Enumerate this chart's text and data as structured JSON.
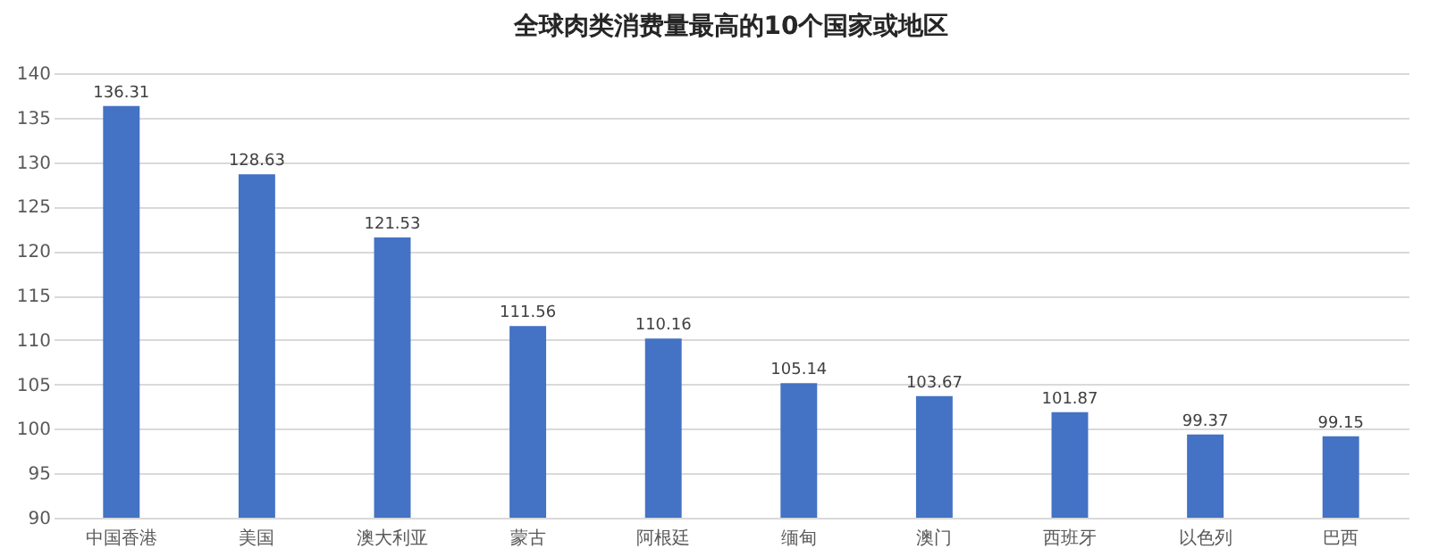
{
  "chart_data": {
    "type": "bar",
    "title": "全球肉类消费量最高的10个国家或地区",
    "categories": [
      "中国香港",
      "美国",
      "澳大利亚",
      "蒙古",
      "阿根廷",
      "缅甸",
      "澳门",
      "西班牙",
      "以色列",
      "巴西"
    ],
    "values": [
      136.31,
      128.63,
      121.53,
      111.56,
      110.16,
      105.14,
      103.67,
      101.87,
      99.37,
      99.15
    ],
    "color": "#4472c4",
    "ylim": [
      90,
      140
    ],
    "yticks": [
      90,
      95,
      100,
      105,
      110,
      115,
      120,
      125,
      130,
      135,
      140
    ],
    "grid": "y",
    "data_labels": true
  }
}
